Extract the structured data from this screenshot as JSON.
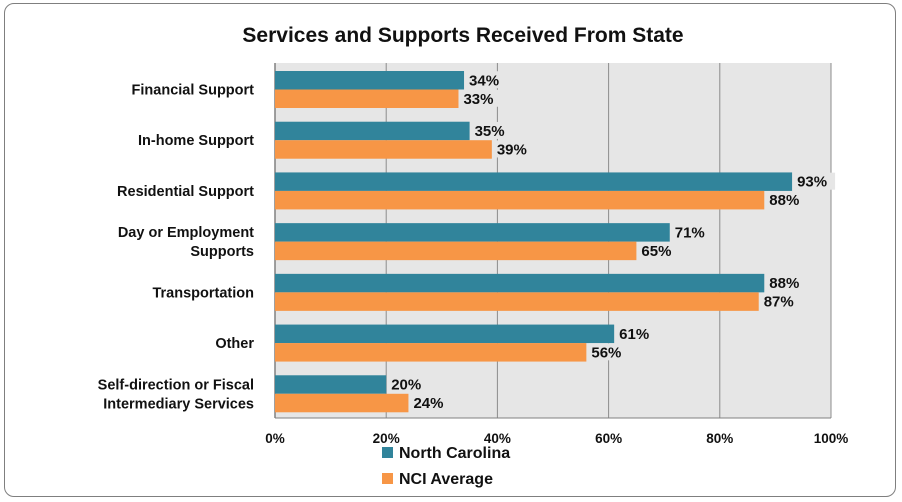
{
  "chart_data": {
    "type": "bar",
    "orientation": "horizontal",
    "title": "Services and Supports Received From State",
    "categories": [
      [
        "Financial Support"
      ],
      [
        "In-home Support"
      ],
      [
        "Residential Support"
      ],
      [
        "Day or Employment",
        "Supports"
      ],
      [
        "Transportation"
      ],
      [
        "Other"
      ],
      [
        "Self-direction or Fiscal",
        "Intermediary Services"
      ]
    ],
    "series": [
      {
        "name": "North Carolina",
        "color": "#31849b",
        "values": [
          34,
          35,
          93,
          71,
          88,
          61,
          20
        ]
      },
      {
        "name": "NCI Average",
        "color": "#f79646",
        "values": [
          33,
          39,
          88,
          65,
          87,
          56,
          24
        ]
      }
    ],
    "value_suffix": "%",
    "xlim": [
      0,
      100
    ],
    "xticks": [
      "0%",
      "20%",
      "40%",
      "60%",
      "80%",
      "100%"
    ],
    "grid": true,
    "legend_position": "bottom"
  }
}
